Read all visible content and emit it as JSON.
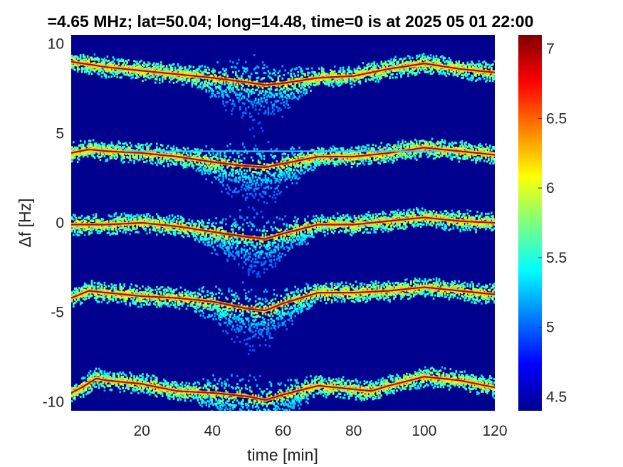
{
  "chart_data": {
    "type": "heatmap",
    "title": "=4.65 MHz;  lat=50.04; long=14.48, time=0 is at 2025 05 01 22:00",
    "xlabel": "time [min]",
    "ylabel": "Δf [Hz]",
    "xlim": [
      0,
      120
    ],
    "ylim": [
      -10.5,
      10.5
    ],
    "x_ticks": [
      20,
      40,
      60,
      80,
      100,
      120
    ],
    "x_tick_labels": [
      "20",
      "40",
      "60",
      "80",
      "100",
      "120"
    ],
    "y_ticks": [
      10,
      5,
      0,
      -5,
      -10
    ],
    "y_tick_labels": [
      "10",
      "5",
      "0",
      "-5",
      "-10"
    ],
    "colorbar": {
      "range": [
        4.4,
        7.1
      ],
      "ticks": [
        4.5,
        5,
        5.5,
        6,
        6.5,
        7
      ],
      "tick_labels": [
        "4.5",
        "5",
        "5.5",
        "6",
        "6.5",
        "7"
      ],
      "colormap": "jet"
    },
    "background_color": "#00008f",
    "series": [
      {
        "offset": 8.9,
        "points": [
          [
            0,
            9.0
          ],
          [
            10,
            8.7
          ],
          [
            20,
            8.5
          ],
          [
            30,
            8.3
          ],
          [
            40,
            8.1
          ],
          [
            48,
            7.9
          ],
          [
            55,
            7.7
          ],
          [
            60,
            7.8
          ],
          [
            70,
            8.1
          ],
          [
            80,
            8.2
          ],
          [
            90,
            8.6
          ],
          [
            100,
            8.9
          ],
          [
            110,
            8.6
          ],
          [
            120,
            8.4
          ]
        ]
      },
      {
        "offset": 3.9,
        "points": [
          [
            0,
            3.9
          ],
          [
            5,
            4.1
          ],
          [
            10,
            4.0
          ],
          [
            20,
            3.9
          ],
          [
            30,
            3.7
          ],
          [
            40,
            3.4
          ],
          [
            48,
            3.2
          ],
          [
            55,
            3.1
          ],
          [
            60,
            3.3
          ],
          [
            70,
            3.7
          ],
          [
            80,
            3.7
          ],
          [
            90,
            3.9
          ],
          [
            100,
            4.2
          ],
          [
            110,
            4.0
          ],
          [
            120,
            3.8
          ]
        ]
      },
      {
        "offset": 0.0,
        "points": [
          [
            0,
            -0.1
          ],
          [
            10,
            -0.1
          ],
          [
            20,
            0.0
          ],
          [
            30,
            -0.2
          ],
          [
            40,
            -0.5
          ],
          [
            50,
            -0.8
          ],
          [
            55,
            -0.9
          ],
          [
            60,
            -0.6
          ],
          [
            70,
            -0.1
          ],
          [
            80,
            -0.1
          ],
          [
            90,
            0.1
          ],
          [
            100,
            0.3
          ],
          [
            110,
            0.1
          ],
          [
            120,
            0.0
          ]
        ]
      },
      {
        "offset": -4.0,
        "points": [
          [
            0,
            -4.2
          ],
          [
            5,
            -3.8
          ],
          [
            10,
            -3.9
          ],
          [
            20,
            -4.1
          ],
          [
            30,
            -4.2
          ],
          [
            40,
            -4.4
          ],
          [
            50,
            -4.8
          ],
          [
            55,
            -4.9
          ],
          [
            60,
            -4.5
          ],
          [
            70,
            -3.9
          ],
          [
            80,
            -3.9
          ],
          [
            90,
            -3.8
          ],
          [
            100,
            -3.6
          ],
          [
            110,
            -3.8
          ],
          [
            120,
            -4.0
          ]
        ]
      },
      {
        "offset": -9.3,
        "points": [
          [
            0,
            -9.5
          ],
          [
            3,
            -9.2
          ],
          [
            7,
            -8.7
          ],
          [
            10,
            -8.8
          ],
          [
            20,
            -9.0
          ],
          [
            30,
            -9.4
          ],
          [
            40,
            -9.5
          ],
          [
            50,
            -9.7
          ],
          [
            55,
            -9.9
          ],
          [
            60,
            -9.6
          ],
          [
            70,
            -9.1
          ],
          [
            80,
            -9.3
          ],
          [
            85,
            -9.4
          ],
          [
            90,
            -9.1
          ],
          [
            100,
            -8.6
          ],
          [
            110,
            -8.8
          ],
          [
            120,
            -9.2
          ]
        ]
      }
    ],
    "horizontal_line": {
      "y": 4.0,
      "x_range": [
        15,
        105
      ]
    }
  }
}
